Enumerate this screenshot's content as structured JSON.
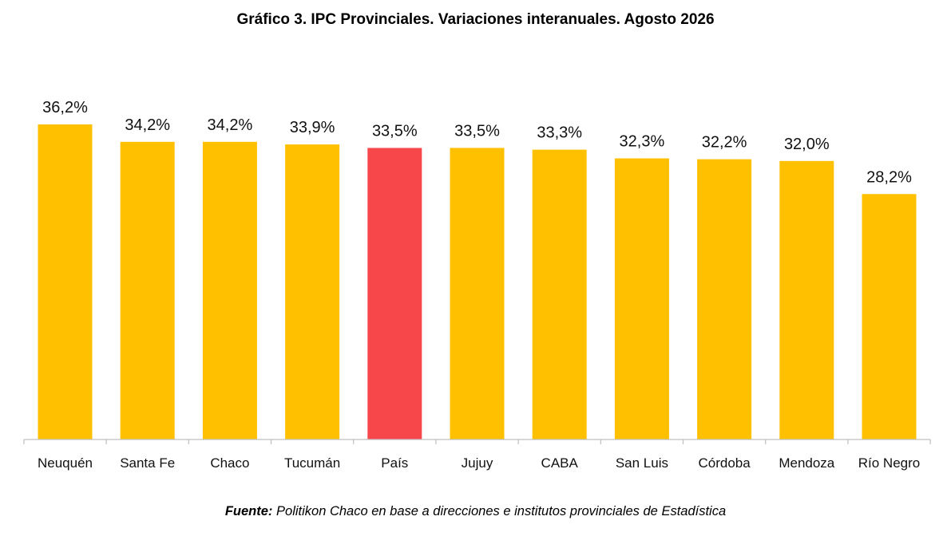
{
  "title": "Gráfico 3. IPC Provinciales. Variaciones interanuales. Agosto 2026",
  "source": {
    "label": "Fuente:",
    "text": " Politikon Chaco en base a direcciones e institutos provinciales de Estadística"
  },
  "colors": {
    "bar": "#FFC000",
    "highlight": "#F8474B",
    "axis": "#BFBFBF"
  },
  "chart_data": {
    "type": "bar",
    "categories": [
      "Neuquén",
      "Santa Fe",
      "Chaco",
      "Tucumán",
      "País",
      "Jujuy",
      "CABA",
      "San Luis",
      "Córdoba",
      "Mendoza",
      "Río Negro"
    ],
    "values": [
      36.2,
      34.2,
      34.2,
      33.9,
      33.5,
      33.5,
      33.3,
      32.3,
      32.2,
      32.0,
      28.2
    ],
    "labels": [
      "36,2%",
      "34,2%",
      "34,2%",
      "33,9%",
      "33,5%",
      "33,5%",
      "33,3%",
      "32,3%",
      "32,2%",
      "32,0%",
      "28,2%"
    ],
    "highlight_category": "País",
    "ylim": [
      0,
      36.2
    ],
    "grid": false,
    "legend": "none",
    "xlabel": "",
    "ylabel": ""
  }
}
